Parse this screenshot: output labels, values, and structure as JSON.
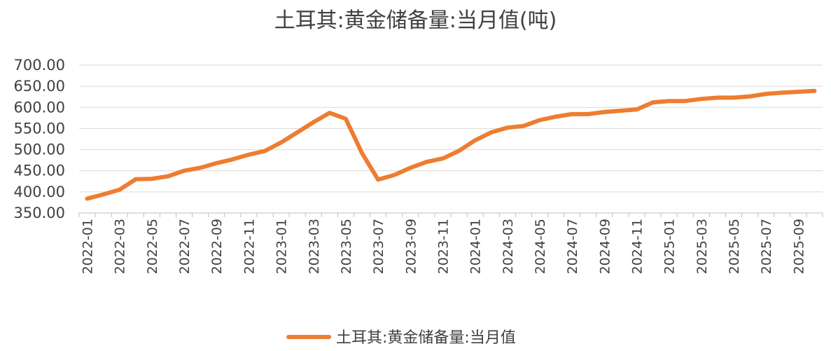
{
  "chart_data": {
    "type": "line",
    "title": "土耳其:黄金储备量:当月值(吨)",
    "xlabel": "",
    "ylabel": "",
    "ylim": [
      350,
      700
    ],
    "yticks": [
      "350.00",
      "400.00",
      "450.00",
      "500.00",
      "550.00",
      "600.00",
      "650.00",
      "700.00"
    ],
    "grid": true,
    "legend_position": "bottom",
    "color": "#ED7D31",
    "x": [
      "2022-01",
      "2022-02",
      "2022-03",
      "2022-04",
      "2022-05",
      "2022-06",
      "2022-07",
      "2022-08",
      "2022-09",
      "2022-10",
      "2022-11",
      "2022-12",
      "2023-01",
      "2023-02",
      "2023-03",
      "2023-04",
      "2023-05",
      "2023-06",
      "2023-07",
      "2023-08",
      "2023-09",
      "2023-10",
      "2023-11",
      "2023-12",
      "2024-01",
      "2024-02",
      "2024-03",
      "2024-04",
      "2024-05",
      "2024-06",
      "2024-07",
      "2024-08",
      "2024-09",
      "2024-10",
      "2024-11",
      "2024-12",
      "2025-01",
      "2025-02",
      "2025-03",
      "2025-04",
      "2025-05",
      "2025-06",
      "2025-07",
      "2025-08",
      "2025-09",
      "2025-10"
    ],
    "xtick_labels": [
      "2022-01",
      "2022-03",
      "2022-05",
      "2022-07",
      "2022-09",
      "2022-11",
      "2023-01",
      "2023-03",
      "2023-05",
      "2023-07",
      "2023-09",
      "2023-11",
      "2024-01",
      "2024-03",
      "2024-05",
      "2024-07",
      "2024-09",
      "2024-11",
      "2025-01",
      "2025-03",
      "2025-05",
      "2025-07",
      "2025-09"
    ],
    "series": [
      {
        "name": "土耳其:黄金储备量:当月值",
        "values": [
          384,
          394,
          405,
          430,
          431,
          437,
          450,
          457,
          468,
          477,
          488,
          497,
          517,
          541,
          565,
          587,
          573,
          492,
          429,
          440,
          457,
          471,
          479,
          497,
          522,
          541,
          552,
          556,
          570,
          578,
          584,
          584,
          589,
          592,
          595,
          612,
          615,
          615,
          620,
          623,
          623,
          626,
          632,
          635,
          637,
          639
        ]
      }
    ]
  }
}
